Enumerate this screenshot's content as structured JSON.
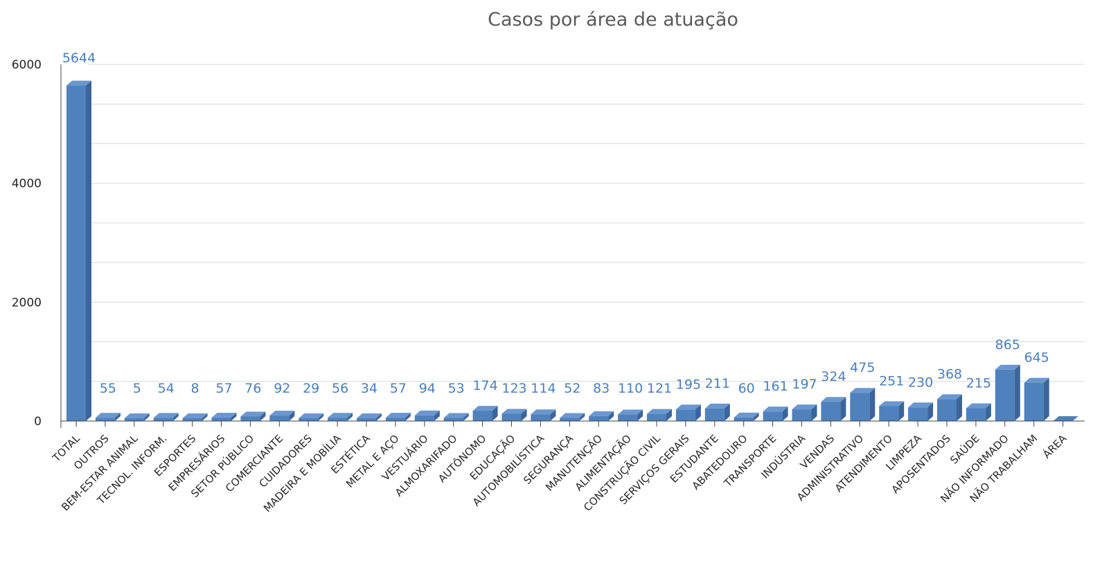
{
  "chart_data": {
    "type": "bar",
    "title": "Casos por área de atuação",
    "xlabel": "",
    "ylabel": "",
    "ylim": [
      0,
      6000
    ],
    "yticks": [
      0,
      2000,
      4000,
      6000
    ],
    "grid": true,
    "legend": "none",
    "bar_style": "3d",
    "colors": {
      "bar_front": "#4f81bd",
      "bar_top": "#6a97cf",
      "bar_side": "#3b659a",
      "label": "#4a7ebb",
      "grid": "#d9d9d9",
      "axis": "#404040"
    },
    "categories": [
      "TOTAL",
      "OUTROS",
      "BEM-ESTAR ANIMAL",
      "TECNOL. INFORM.",
      "ESPORTES",
      "EMPRESÁRIOS",
      "SETOR PÚBLICO",
      "COMERCIANTE",
      "CUIDADORES",
      "MADEIRA E MOBÍLIA",
      "ESTÉTICA",
      "METAL E AÇO",
      "VESTUÁRIO",
      "ALMOXARIFADO",
      "AUTÔNOMO",
      "EDUCAÇÃO",
      "AUTOMOBILÍSTICA",
      "SEGURANÇA",
      "MANUTENÇÃO",
      "ALIMENTAÇÃO",
      "CONSTRUÇÃO CIVIL",
      "SERVIÇOS GERAIS",
      "ESTUDANTE",
      "ABATEDOURO",
      "TRANSPORTE",
      "INDÚSTRIA",
      "VENDAS",
      "ADMINISTRATIVO",
      "ATENDIMENTO",
      "LIMPEZA",
      "APOSENTADOS",
      "SAÚDE",
      "NÃO INFORMADO",
      "NÃO TRABALHAM",
      "ÁREA"
    ],
    "values": [
      5644,
      55,
      5,
      54,
      8,
      57,
      76,
      92,
      29,
      56,
      34,
      57,
      94,
      53,
      174,
      123,
      114,
      52,
      83,
      110,
      121,
      195,
      211,
      60,
      161,
      197,
      324,
      475,
      251,
      230,
      368,
      215,
      865,
      645,
      null
    ],
    "data_labels": [
      "5644",
      "55",
      "5",
      "54",
      "8",
      "57",
      "76",
      "92",
      "29",
      "56",
      "34",
      "57",
      "94",
      "53",
      "174",
      "123",
      "114",
      "52",
      "83",
      "110",
      "121",
      "195",
      "211",
      "60",
      "161",
      "197",
      "324",
      "475",
      "251",
      "230",
      "368",
      "215",
      "865",
      "645",
      ""
    ]
  }
}
